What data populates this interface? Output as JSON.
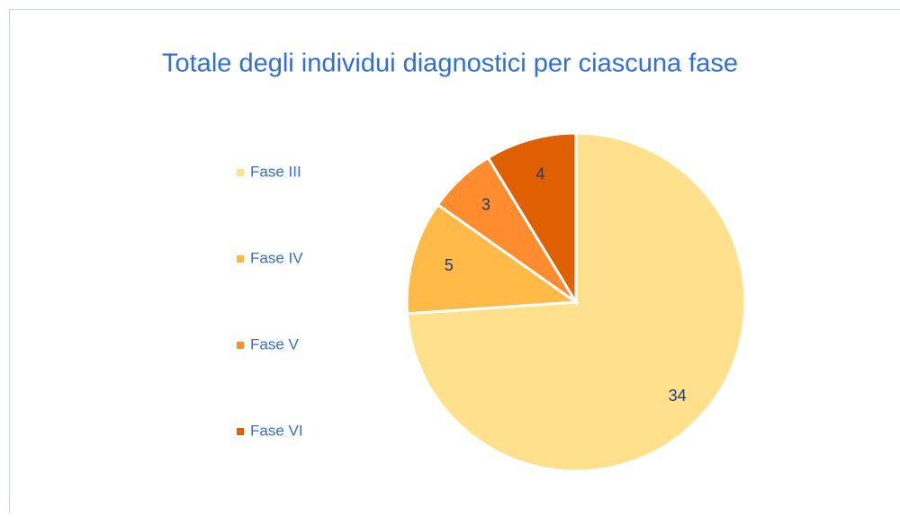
{
  "chart_data": {
    "type": "pie",
    "title": "Totale degli individui diagnostici per ciascuna fase",
    "categories": [
      "Fase III",
      "Fase IV",
      "Fase V",
      "Fase VI"
    ],
    "values": [
      34,
      5,
      3,
      4
    ],
    "colors": [
      "#FFE08C",
      "#FFBA47",
      "#FF8C2E",
      "#E05F00"
    ],
    "legend": "left"
  }
}
